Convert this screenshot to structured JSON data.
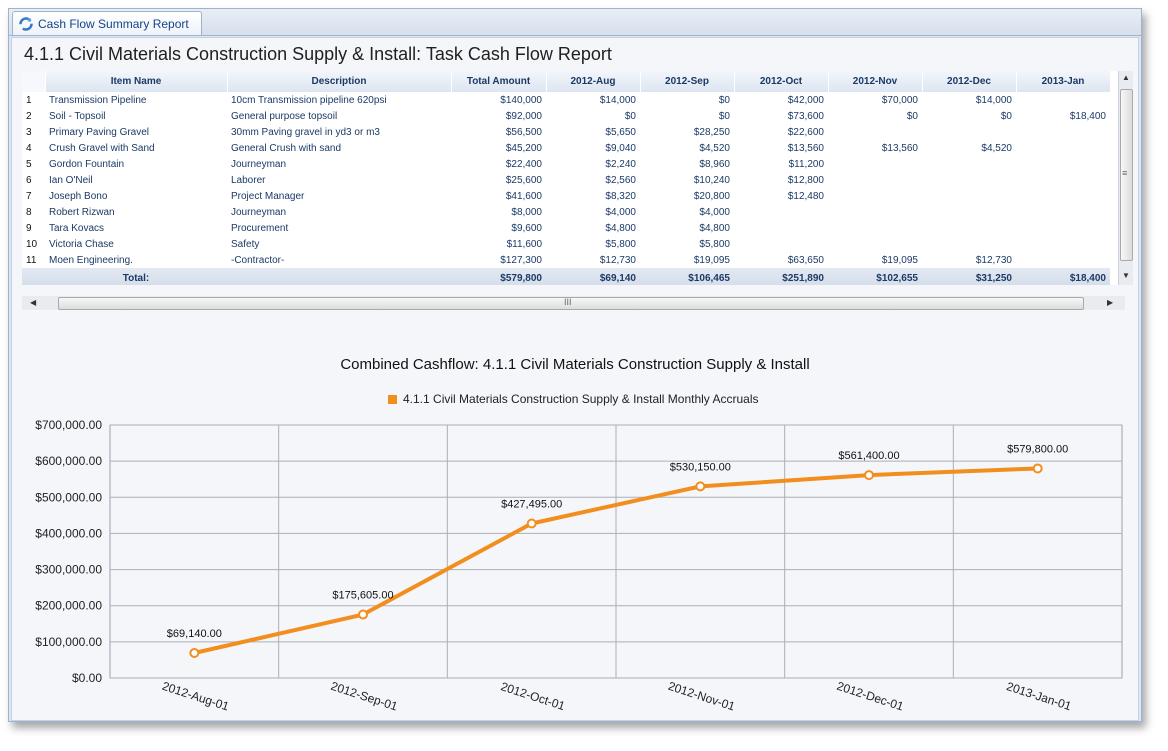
{
  "window": {
    "tab_label": "Cash Flow Summary Report"
  },
  "report": {
    "title": "4.1.1 Civil Materials Construction Supply & Install: Task Cash Flow Report"
  },
  "table": {
    "columns": [
      "",
      "Item Name",
      "Description",
      "Total Amount",
      "2012-Aug",
      "2012-Sep",
      "2012-Oct",
      "2012-Nov",
      "2012-Dec",
      "2013-Jan"
    ],
    "rows": [
      [
        "1",
        "Transmission Pipeline",
        "10cm Transmission pipeline 620psi",
        "$140,000",
        "$14,000",
        "$0",
        "$42,000",
        "$70,000",
        "$14,000",
        ""
      ],
      [
        "2",
        "Soil - Topsoil",
        "General purpose topsoil",
        "$92,000",
        "$0",
        "$0",
        "$73,600",
        "$0",
        "$0",
        "$18,400"
      ],
      [
        "3",
        "Primary Paving Gravel",
        "30mm Paving gravel in yd3 or m3",
        "$56,500",
        "$5,650",
        "$28,250",
        "$22,600",
        "",
        "",
        ""
      ],
      [
        "4",
        "Crush Gravel with Sand",
        "General Crush with sand",
        "$45,200",
        "$9,040",
        "$4,520",
        "$13,560",
        "$13,560",
        "$4,520",
        ""
      ],
      [
        "5",
        "Gordon Fountain",
        "Journeyman",
        "$22,400",
        "$2,240",
        "$8,960",
        "$11,200",
        "",
        "",
        ""
      ],
      [
        "6",
        "Ian O'Neil",
        "Laborer",
        "$25,600",
        "$2,560",
        "$10,240",
        "$12,800",
        "",
        "",
        ""
      ],
      [
        "7",
        "Joseph Bono",
        "Project Manager",
        "$41,600",
        "$8,320",
        "$20,800",
        "$12,480",
        "",
        "",
        ""
      ],
      [
        "8",
        "Robert Rizwan",
        "Journeyman",
        "$8,000",
        "$4,000",
        "$4,000",
        "",
        "",
        "",
        ""
      ],
      [
        "9",
        "Tara Kovacs",
        "Procurement",
        "$9,600",
        "$4,800",
        "$4,800",
        "",
        "",
        "",
        ""
      ],
      [
        "10",
        "Victoria Chase",
        "Safety",
        "$11,600",
        "$5,800",
        "$5,800",
        "",
        "",
        "",
        ""
      ],
      [
        "11",
        "Moen Engineering.",
        "-Contractor-",
        "$127,300",
        "$12,730",
        "$19,095",
        "$63,650",
        "$19,095",
        "$12,730",
        ""
      ]
    ],
    "total": [
      "",
      "Total:",
      "",
      "$579,800",
      "$69,140",
      "$106,465",
      "$251,890",
      "$102,655",
      "$31,250",
      "$18,400"
    ]
  },
  "scrollbar": {
    "grip": "III"
  },
  "chart_data": {
    "type": "line",
    "title": "Combined Cashflow: 4.1.1 Civil Materials Construction Supply & Install",
    "categories": [
      "2012-Aug-01",
      "2012-Sep-01",
      "2012-Oct-01",
      "2012-Nov-01",
      "2012-Dec-01",
      "2013-Jan-01"
    ],
    "series": [
      {
        "name": "4.1.1 Civil Materials Construction Supply & Install Monthly Accruals",
        "values": [
          69140,
          175605,
          427495,
          530150,
          561400,
          579800
        ],
        "color": "#f28e1e"
      }
    ],
    "data_labels": [
      "$69,140.00",
      "$175,605.00",
      "$427,495.00",
      "$530,150.00",
      "$561,400.00",
      "$579,800.00"
    ],
    "y_ticks": [
      "$0.00",
      "$100,000.00",
      "$200,000.00",
      "$300,000.00",
      "$400,000.00",
      "$500,000.00",
      "$600,000.00",
      "$700,000.00"
    ],
    "ylim": [
      0,
      700000
    ],
    "grid": true,
    "legend": "top"
  }
}
